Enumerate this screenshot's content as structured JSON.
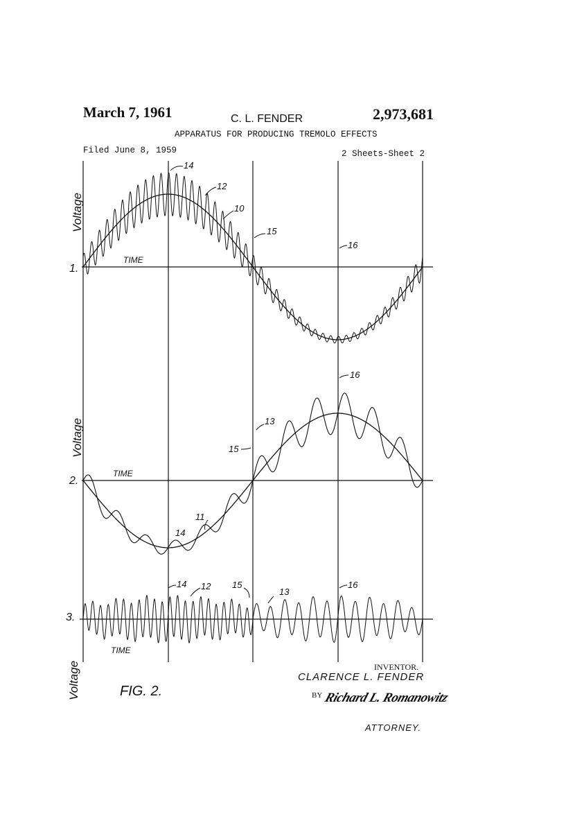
{
  "header": {
    "date": "March 7, 1961",
    "inventor": "C. L. FENDER",
    "patent_number": "2,973,681",
    "title": "APPARATUS FOR PRODUCING TREMOLO EFFECTS",
    "filed": "Filed June 8, 1959",
    "sheets": "2 Sheets-Sheet 2"
  },
  "figure": {
    "label": "FIG. 2.",
    "axis_label_y": "Voltage",
    "axis_label_x": "TIME",
    "graphs": [
      {
        "number": "1.",
        "refs": [
          "14",
          "12",
          "10",
          "15",
          "16"
        ]
      },
      {
        "number": "2.",
        "refs": [
          "16",
          "13",
          "15",
          "11",
          "14"
        ]
      },
      {
        "number": "3.",
        "refs": [
          "14",
          "12",
          "15",
          "13",
          "16"
        ]
      }
    ]
  },
  "signature": {
    "inventor_label": "INVENTOR.",
    "inventor_name": "CLARENCE L. FENDER",
    "by": "BY",
    "attorney_signature": "Richard L. Romanowitz",
    "attorney_label": "ATTORNEY."
  }
}
